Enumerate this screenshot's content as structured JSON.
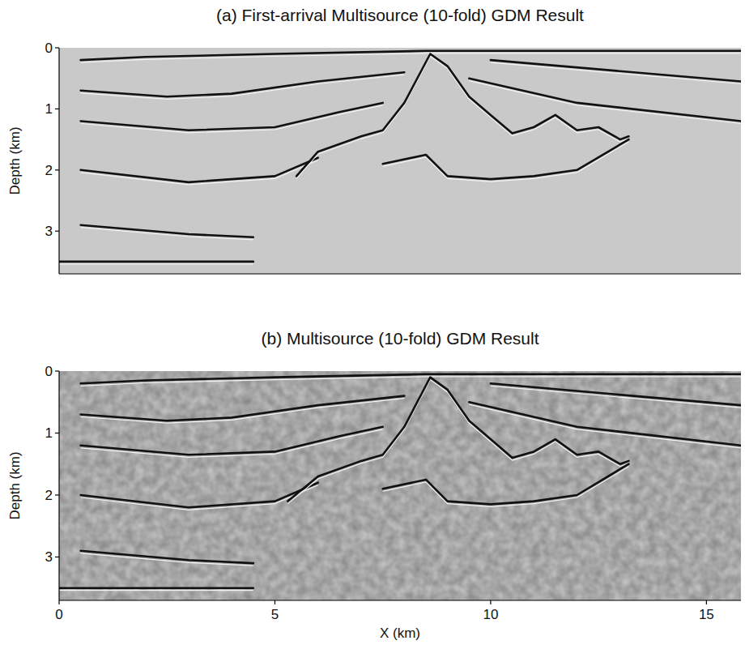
{
  "chart_data": [
    {
      "type": "line",
      "title": "(a) First-arrival Multisource (10-fold) GDM Result",
      "y_label": "Depth (km)",
      "xlim": [
        0,
        15.8
      ],
      "ylim": [
        0,
        3.7
      ],
      "yticks": [
        0,
        1,
        2,
        3
      ],
      "tick_labels": "y",
      "color": "#111111",
      "series": [
        {
          "x": [
            0.5,
            2,
            5,
            8.5,
            12,
            15.8
          ],
          "values": [
            0.2,
            0.15,
            0.1,
            0.05,
            0.05,
            0.05
          ]
        },
        {
          "x": [
            0.5,
            2.5,
            4,
            6,
            8
          ],
          "values": [
            0.7,
            0.8,
            0.75,
            0.55,
            0.4
          ]
        },
        {
          "x": [
            0.5,
            3,
            5,
            6.5,
            7.5
          ],
          "values": [
            1.2,
            1.35,
            1.3,
            1.05,
            0.9
          ]
        },
        {
          "x": [
            0.5,
            3,
            5,
            6
          ],
          "values": [
            2.0,
            2.2,
            2.1,
            1.8
          ]
        },
        {
          "x": [
            0.5,
            3,
            4.5
          ],
          "values": [
            2.9,
            3.05,
            3.1
          ]
        },
        {
          "x": [
            5.5,
            6,
            7,
            7.5,
            8,
            8.6,
            9,
            9.5,
            10,
            10.5,
            11,
            11.5,
            12,
            12.5,
            13,
            13.2
          ],
          "values": [
            2.1,
            1.7,
            1.45,
            1.35,
            0.9,
            0.1,
            0.3,
            0.8,
            1.1,
            1.4,
            1.3,
            1.1,
            1.35,
            1.3,
            1.5,
            1.45
          ]
        },
        {
          "x": [
            7.5,
            8.5,
            9,
            10,
            11,
            12,
            13.2
          ],
          "values": [
            1.9,
            1.75,
            2.1,
            2.15,
            2.1,
            2.0,
            1.5
          ]
        },
        {
          "x": [
            9.5,
            12,
            15.8
          ],
          "values": [
            0.5,
            0.9,
            1.2
          ]
        },
        {
          "x": [
            10,
            15.8
          ],
          "values": [
            0.2,
            0.55
          ]
        },
        {
          "x": [
            0,
            4.5
          ],
          "values": [
            3.5,
            3.5
          ]
        }
      ]
    },
    {
      "type": "line",
      "title": "(b) Multisource (10-fold) GDM Result",
      "x_label": "X (km)",
      "y_label": "Depth (km)",
      "xlim": [
        0,
        15.8
      ],
      "ylim": [
        0,
        3.7
      ],
      "xticks": [
        0,
        5,
        10,
        15
      ],
      "yticks": [
        0,
        1,
        2,
        3
      ],
      "color": "#111111",
      "series": [
        {
          "x": [
            0.5,
            2,
            5,
            8.5,
            12,
            15.8
          ],
          "values": [
            0.2,
            0.15,
            0.1,
            0.05,
            0.05,
            0.05
          ]
        },
        {
          "x": [
            0.5,
            2.5,
            4,
            6,
            8
          ],
          "values": [
            0.7,
            0.8,
            0.75,
            0.55,
            0.4
          ]
        },
        {
          "x": [
            0.5,
            3,
            5,
            6.5,
            7.5
          ],
          "values": [
            1.2,
            1.35,
            1.3,
            1.05,
            0.9
          ]
        },
        {
          "x": [
            0.5,
            3,
            5,
            6
          ],
          "values": [
            2.0,
            2.2,
            2.1,
            1.8
          ]
        },
        {
          "x": [
            0.5,
            3,
            4.5
          ],
          "values": [
            2.9,
            3.05,
            3.1
          ]
        },
        {
          "x": [
            5.3,
            6,
            7,
            7.5,
            8,
            8.6,
            9,
            9.5,
            10,
            10.5,
            11,
            11.5,
            12,
            12.5,
            13,
            13.2
          ],
          "values": [
            2.1,
            1.7,
            1.45,
            1.35,
            0.9,
            0.1,
            0.3,
            0.8,
            1.1,
            1.4,
            1.3,
            1.1,
            1.35,
            1.3,
            1.5,
            1.45
          ]
        },
        {
          "x": [
            7.5,
            8.5,
            9,
            10,
            11,
            12,
            13.2
          ],
          "values": [
            1.9,
            1.75,
            2.1,
            2.15,
            2.1,
            2.0,
            1.5
          ]
        },
        {
          "x": [
            9.5,
            12,
            15.8
          ],
          "values": [
            0.5,
            0.9,
            1.2
          ]
        },
        {
          "x": [
            10,
            15.8
          ],
          "values": [
            0.2,
            0.55
          ]
        },
        {
          "x": [
            0,
            4.5
          ],
          "values": [
            3.5,
            3.5
          ]
        }
      ]
    }
  ]
}
